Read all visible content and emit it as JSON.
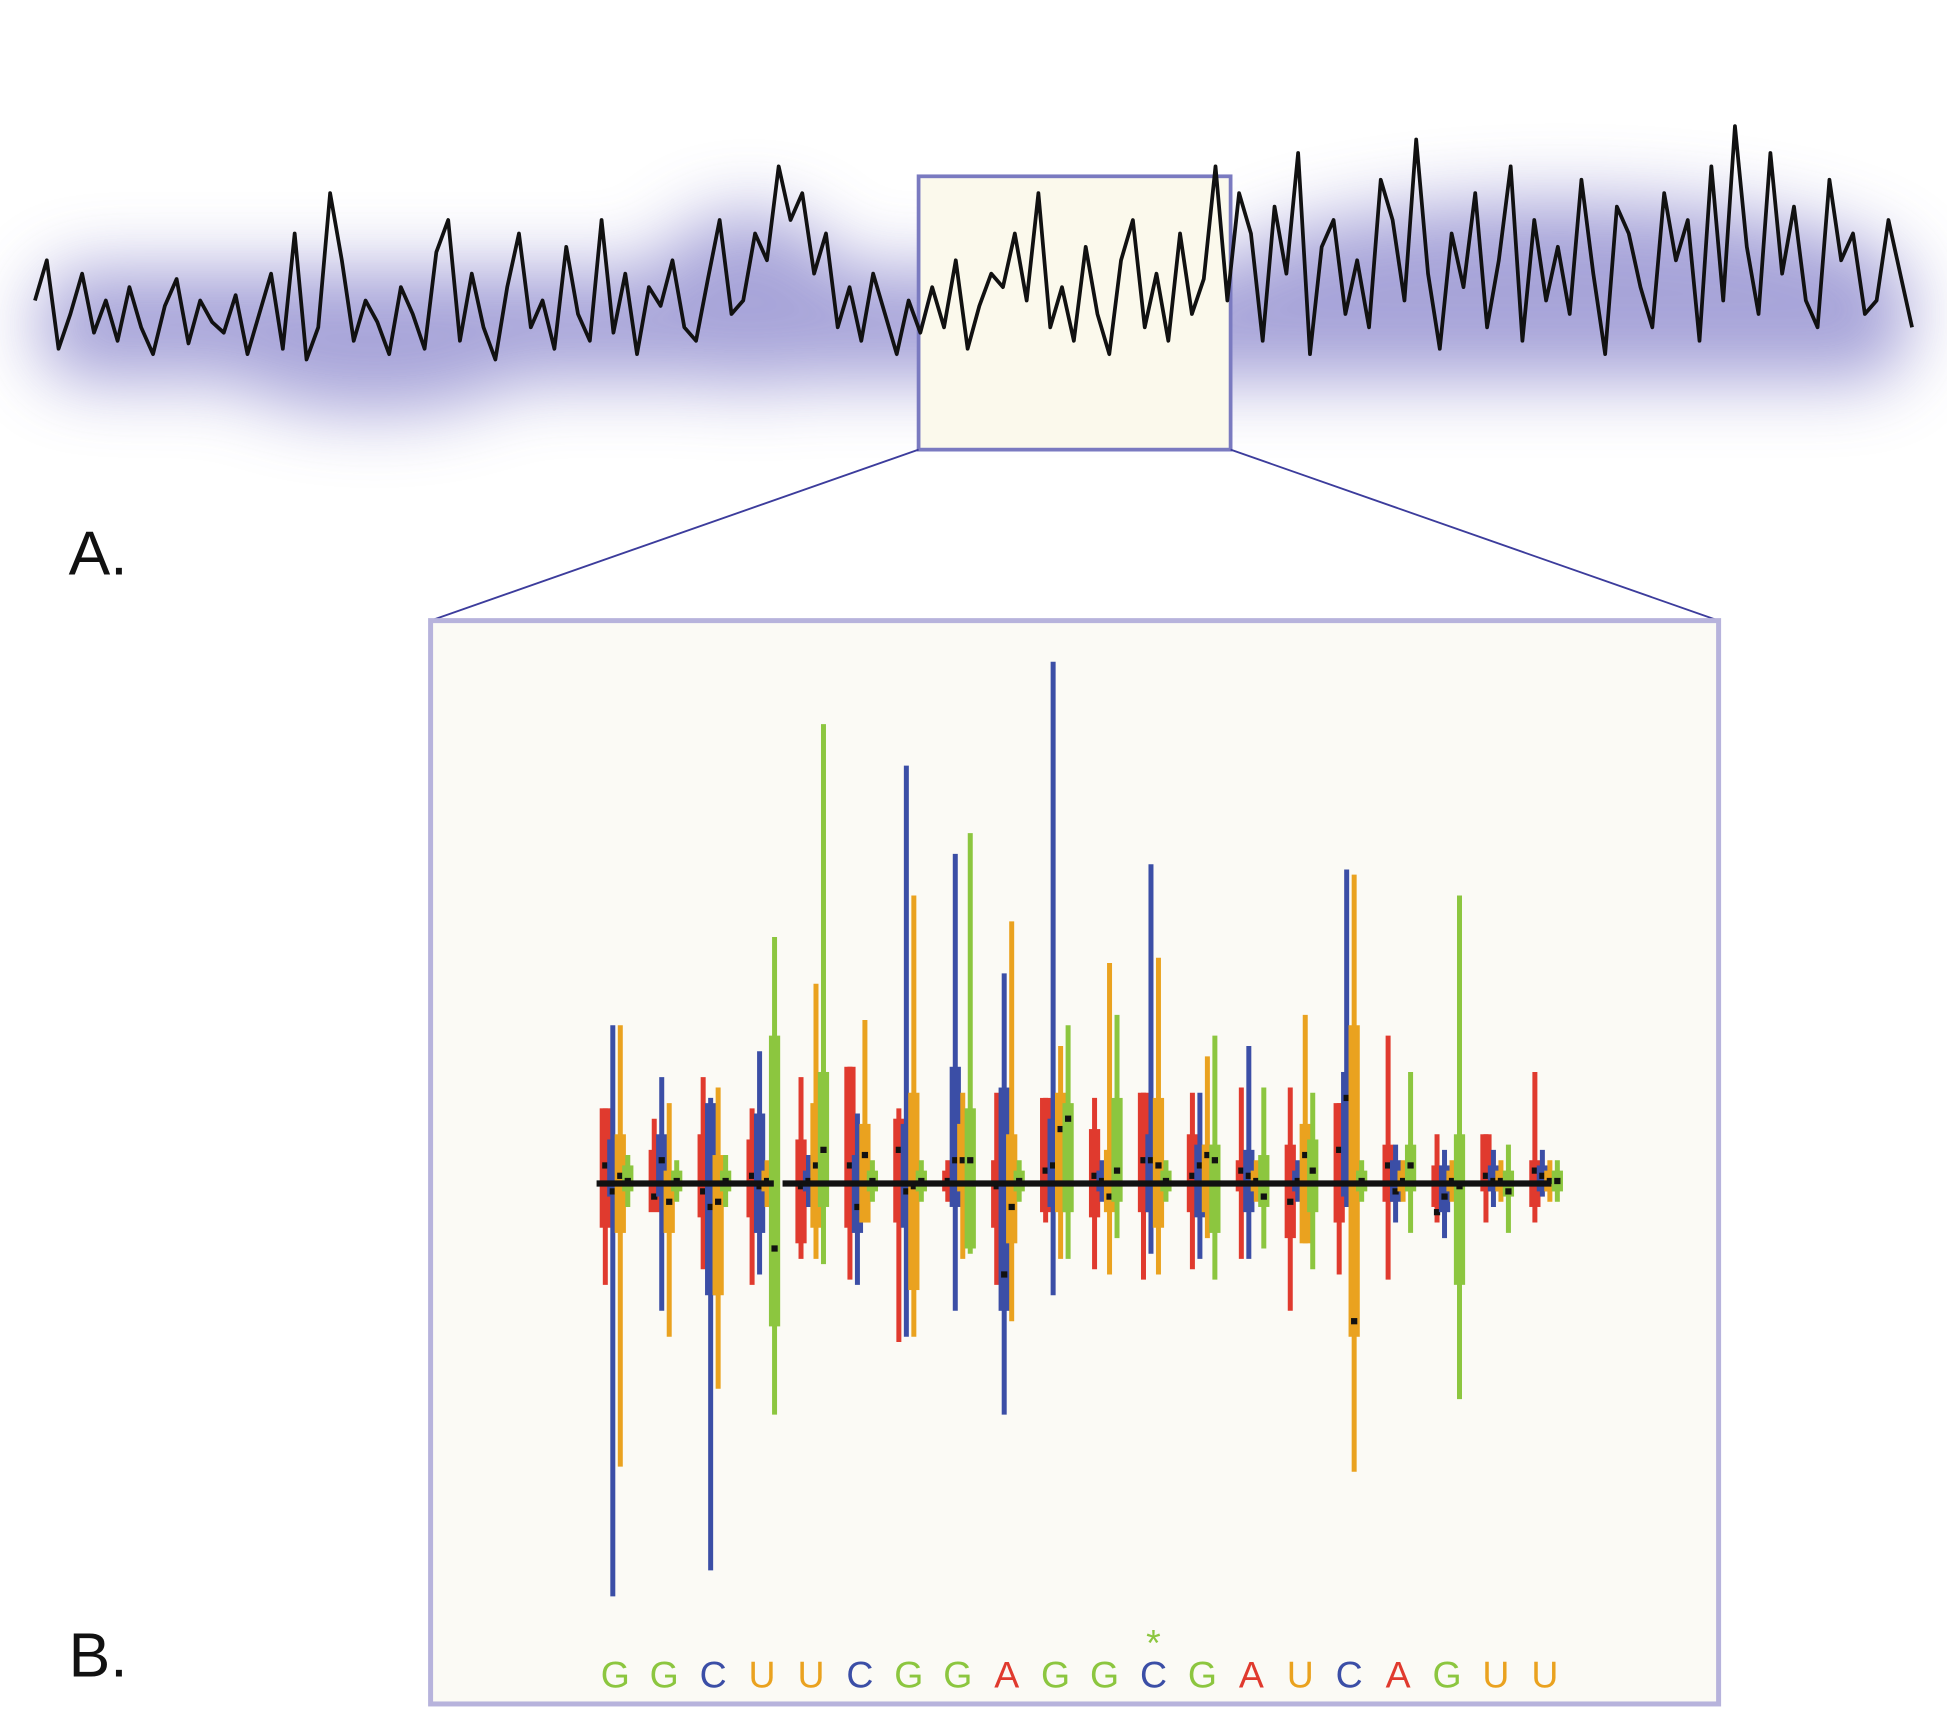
{
  "panel_a": {
    "label": "A.",
    "trace": [
      30,
      45,
      12,
      25,
      40,
      18,
      30,
      15,
      35,
      20,
      10,
      28,
      38,
      14,
      30,
      22,
      18,
      32,
      10,
      25,
      40,
      12,
      55,
      8,
      20,
      70,
      45,
      15,
      30,
      22,
      10,
      35,
      25,
      12,
      48,
      60,
      15,
      40,
      20,
      8,
      35,
      55,
      20,
      30,
      12,
      50,
      25,
      15,
      60,
      18,
      40,
      10,
      35,
      28,
      45,
      20,
      15,
      38,
      60,
      25,
      30,
      55,
      45,
      80,
      60,
      70,
      40,
      55,
      20,
      35,
      15,
      40,
      25,
      10,
      30,
      18,
      35,
      20,
      45,
      12,
      28,
      40,
      35,
      55,
      30,
      70,
      20,
      35,
      15,
      50,
      25,
      10,
      45,
      60,
      20,
      40,
      15,
      55,
      25,
      38,
      80,
      30,
      70,
      55,
      15,
      65,
      40,
      85,
      10,
      50,
      60,
      25,
      45,
      20,
      75,
      60,
      30,
      90,
      40,
      12,
      55,
      35,
      70,
      20,
      45,
      80,
      15,
      60,
      30,
      50,
      25,
      75,
      40,
      10,
      65,
      55,
      35,
      20,
      70,
      45,
      60,
      15,
      80,
      30,
      95,
      50,
      25,
      85,
      40,
      65,
      30,
      20,
      75,
      45,
      55,
      25,
      30,
      60,
      40,
      20
    ]
  },
  "panel_b": {
    "label": "B.",
    "sequence": [
      "G",
      "G",
      "C",
      "U",
      "U",
      "C",
      "G",
      "G",
      "A",
      "G",
      "G",
      "C",
      "G",
      "A",
      "U",
      "C",
      "A",
      "G",
      "U",
      "U"
    ],
    "letter_colors": {
      "A": "#e03a2e",
      "C": "#3b4ea6",
      "G": "#8cc63f",
      "U": "#eaa21f"
    },
    "box_colors": [
      "#e03a2e",
      "#3b4ea6",
      "#eaa21f",
      "#8cc63f"
    ],
    "marker": {
      "text": "*",
      "position": 11
    },
    "boxes": [
      [
        [
          -2,
          -0.9,
          0.3,
          1.4,
          1.4
        ],
        [
          -8,
          -0.3,
          -0.2,
          0.8,
          3
        ],
        [
          -5.5,
          -1,
          0.1,
          0.9,
          3
        ],
        [
          -0.5,
          -0.2,
          0,
          0.3,
          0.5
        ]
      ],
      [
        [
          -0.5,
          -0.6,
          -0.3,
          0.6,
          1.2
        ],
        [
          -2.5,
          -0.3,
          0.4,
          0.9,
          2
        ],
        [
          -3,
          -1,
          -0.4,
          0.2,
          1.5
        ],
        [
          -0.4,
          -0.2,
          0,
          0.2,
          0.4
        ]
      ],
      [
        [
          -1.7,
          -0.7,
          -0.2,
          0.9,
          2
        ],
        [
          -7.5,
          -2.2,
          -0.5,
          1.5,
          1.6
        ],
        [
          -4,
          -2.2,
          -0.4,
          0.5,
          1.8
        ],
        [
          -0.5,
          -0.2,
          0,
          0.2,
          0.5
        ]
      ],
      [
        [
          -2,
          -0.7,
          0.1,
          0.8,
          1.4
        ],
        [
          -1.8,
          -1,
          -0.1,
          1.3,
          2.5
        ],
        [
          -0.5,
          -0.2,
          0,
          0.2,
          0.4
        ],
        [
          -4.5,
          -2.8,
          -1.3,
          2.8,
          4.7
        ]
      ],
      [
        [
          -1.5,
          -1.2,
          -0.1,
          0.8,
          2
        ],
        [
          -0.5,
          -0.2,
          0,
          0.2,
          0.5
        ],
        [
          -1.5,
          -0.9,
          0.3,
          1.5,
          3.8
        ],
        [
          -1.6,
          -0.5,
          0.6,
          2.1,
          8.8
        ]
      ],
      [
        [
          -1.9,
          -0.9,
          0.3,
          2.2,
          2.2
        ],
        [
          -2,
          -1,
          -0.5,
          0.5,
          1.3
        ],
        [
          -0.5,
          -0.8,
          0.5,
          1.1,
          3.1
        ],
        [
          -0.4,
          -0.2,
          0,
          0.2,
          0.4
        ]
      ],
      [
        [
          -3.1,
          -0.8,
          0.6,
          1.2,
          1.4
        ],
        [
          -3,
          -0.9,
          -0.2,
          1.1,
          8
        ],
        [
          -3,
          -2.1,
          -0.1,
          1.7,
          5.5
        ],
        [
          -0.4,
          -0.2,
          0,
          0.2,
          0.4
        ]
      ],
      [
        [
          -0.4,
          -0.2,
          0,
          0.2,
          0.4
        ],
        [
          -2.5,
          -0.5,
          0.4,
          2.2,
          6.3
        ],
        [
          -1.5,
          -0.2,
          0.4,
          1.1,
          1.7
        ],
        [
          -1.4,
          -1.3,
          0.4,
          1.4,
          6.7
        ]
      ],
      [
        [
          -2,
          -0.9,
          -0.1,
          0.4,
          1.7
        ],
        [
          -4.5,
          -2.5,
          -1.8,
          1.8,
          4
        ],
        [
          -2.7,
          -1.2,
          -0.5,
          0.9,
          5
        ],
        [
          -0.4,
          -0.2,
          0,
          0.2,
          0.4
        ]
      ],
      [
        [
          -0.8,
          -0.6,
          0.2,
          1.6,
          1.6
        ],
        [
          -2.2,
          -0.5,
          0.3,
          1.2,
          10
        ],
        [
          -1.5,
          -0.6,
          1,
          1.7,
          2.6
        ],
        [
          -1.5,
          -0.6,
          1.2,
          1.5,
          3
        ]
      ],
      [
        [
          -1.7,
          -0.7,
          0.1,
          1,
          1.6
        ],
        [
          -0.4,
          -0.2,
          0,
          0.2,
          0.4
        ],
        [
          -1.8,
          -0.6,
          -0.3,
          0.6,
          4.2
        ],
        [
          -1.1,
          -0.4,
          0.2,
          1.6,
          3.2
        ]
      ],
      [
        [
          -1.9,
          -0.6,
          0.4,
          1.7,
          1.7
        ],
        [
          -1.4,
          -0.6,
          0.4,
          0.9,
          6.1
        ],
        [
          -1.8,
          -0.9,
          0.3,
          1.6,
          4.3
        ],
        [
          -0.4,
          -0.2,
          0,
          0.2,
          0.4
        ]
      ],
      [
        [
          -1.7,
          -0.6,
          0.1,
          0.9,
          1.7
        ],
        [
          -1.5,
          -0.7,
          0.3,
          0.7,
          1.7
        ],
        [
          -1.1,
          -0.6,
          0.5,
          0.7,
          2.4
        ],
        [
          -1.9,
          -1,
          0.4,
          0.7,
          2.8
        ]
      ],
      [
        [
          -1.5,
          -0.2,
          0.2,
          0.4,
          1.8
        ],
        [
          -1.5,
          -0.6,
          0.1,
          0.6,
          2.6
        ],
        [
          -0.4,
          -0.2,
          0,
          0.2,
          0.4
        ],
        [
          -1.3,
          -0.5,
          -0.3,
          0.5,
          1.8
        ]
      ],
      [
        [
          -2.5,
          -1.1,
          -0.4,
          0.7,
          1.8
        ],
        [
          -0.4,
          -0.2,
          0,
          0.2,
          0.4
        ],
        [
          -1.2,
          -1.2,
          0.5,
          1.1,
          3.2
        ],
        [
          -1.7,
          -0.6,
          0.2,
          0.8,
          1.7
        ]
      ],
      [
        [
          -1.8,
          -0.8,
          0.6,
          1.5,
          1.5
        ],
        [
          -0.5,
          -0.3,
          1.6,
          2.1,
          6
        ],
        [
          -5.6,
          -3,
          -2.7,
          3,
          5.9
        ],
        [
          -0.4,
          -0.2,
          0,
          0.2,
          0.4
        ]
      ],
      [
        [
          -1.9,
          -0.4,
          0.3,
          0.7,
          2.8
        ],
        [
          -0.8,
          -0.4,
          -0.2,
          0.4,
          0.7
        ],
        [
          -0.4,
          -0.2,
          0,
          0.2,
          0.4
        ],
        [
          -1,
          -0.2,
          0.3,
          0.7,
          2.1
        ]
      ],
      [
        [
          -0.8,
          -0.5,
          -0.6,
          0.3,
          0.9
        ],
        [
          -1.1,
          -0.6,
          -0.3,
          0.3,
          0.6
        ],
        [
          -0.4,
          -0.2,
          0,
          0.2,
          0.4
        ],
        [
          -4.2,
          -2,
          -0.1,
          0.9,
          5.5
        ]
      ],
      [
        [
          -0.8,
          -0.2,
          0.1,
          0.9,
          0.9
        ],
        [
          -0.5,
          -0.2,
          0,
          0.3,
          0.6
        ],
        [
          -0.4,
          -0.2,
          0,
          0.2,
          0.4
        ],
        [
          -1,
          -0.3,
          -0.2,
          0.2,
          0.7
        ]
      ],
      [
        [
          -0.8,
          -0.5,
          0.2,
          0.4,
          2.1
        ],
        [
          -0.3,
          -0.2,
          0.1,
          0.3,
          0.6
        ],
        [
          -0.4,
          -0.2,
          0,
          0.2,
          0.4
        ],
        [
          -0.4,
          -0.2,
          0,
          0.2,
          0.4
        ]
      ]
    ]
  }
}
